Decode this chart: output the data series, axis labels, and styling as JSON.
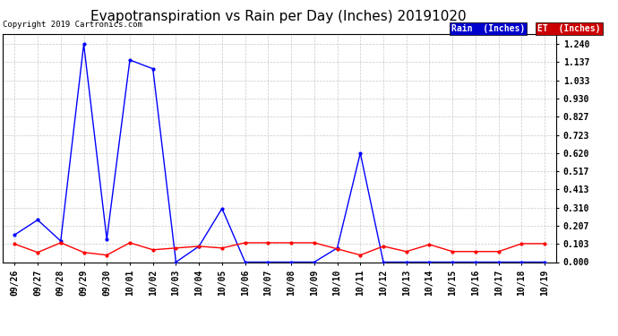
{
  "title": "Evapotranspiration vs Rain per Day (Inches) 20191020",
  "copyright_text": "Copyright 2019 Cartronics.com",
  "x_labels": [
    "09/26",
    "09/27",
    "09/28",
    "09/29",
    "09/30",
    "10/01",
    "10/02",
    "10/03",
    "10/04",
    "10/05",
    "10/06",
    "10/07",
    "10/08",
    "10/09",
    "10/10",
    "10/11",
    "10/12",
    "10/13",
    "10/14",
    "10/15",
    "10/16",
    "10/17",
    "10/18",
    "10/19"
  ],
  "rain_values": [
    0.155,
    0.24,
    0.12,
    1.24,
    0.13,
    1.15,
    1.1,
    0.0,
    0.09,
    0.305,
    0.0,
    0.0,
    0.0,
    0.0,
    0.08,
    0.62,
    0.0,
    0.0,
    0.0,
    0.0,
    0.0,
    0.0,
    0.0,
    0.0
  ],
  "et_values": [
    0.103,
    0.055,
    0.11,
    0.055,
    0.04,
    0.11,
    0.07,
    0.08,
    0.09,
    0.08,
    0.11,
    0.11,
    0.11,
    0.11,
    0.075,
    0.04,
    0.09,
    0.06,
    0.1,
    0.06,
    0.06,
    0.06,
    0.105,
    0.105
  ],
  "rain_color": "#0000ff",
  "et_color": "#ff0000",
  "background_color": "#ffffff",
  "grid_color": "#bbbbbb",
  "title_fontsize": 11,
  "copyright_fontsize": 6.5,
  "tick_fontsize": 7,
  "legend_rain_label": "Rain  (Inches)",
  "legend_et_label": "ET  (Inches)",
  "y_ticks": [
    0.0,
    0.103,
    0.207,
    0.31,
    0.413,
    0.517,
    0.62,
    0.723,
    0.827,
    0.93,
    1.033,
    1.137,
    1.24
  ],
  "ylim": [
    0.0,
    1.3
  ],
  "marker": ".",
  "marker_size": 4,
  "line_width": 1.0,
  "legend_bg_color": "#0000cc",
  "legend_et_bg_color": "#cc0000"
}
